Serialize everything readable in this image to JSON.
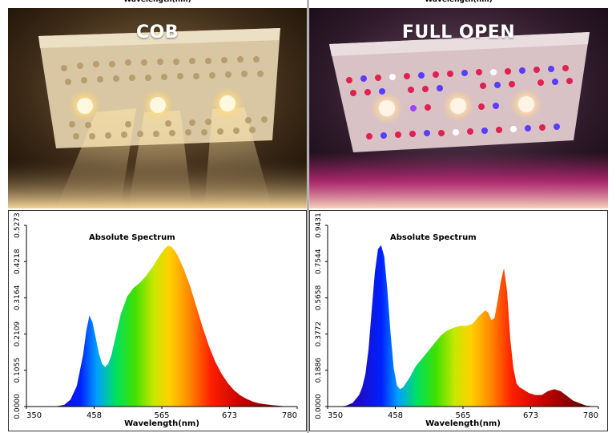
{
  "panels": [
    {
      "photo_title": "COB",
      "top_label": "Wavelength(nm)"
    },
    {
      "photo_title": "FULL OPEN",
      "top_label": "Wavelength(nm)"
    }
  ],
  "chart_data": [
    {
      "type": "area",
      "title": "Absolute Spectrum",
      "xlabel": "Wavelength(nm)",
      "ylabel": "",
      "xlim": [
        350,
        780
      ],
      "ylim": [
        0,
        0.5273
      ],
      "x_ticks": [
        "350",
        "458",
        "565",
        "673",
        "780"
      ],
      "y_ticks": [
        "0.0000",
        "0.1055",
        "0.2109",
        "0.3164",
        "0.4218",
        "0.5273"
      ],
      "x": [
        395,
        410,
        420,
        430,
        440,
        445,
        450,
        455,
        460,
        465,
        470,
        475,
        480,
        485,
        490,
        500,
        510,
        520,
        530,
        540,
        550,
        560,
        570,
        575,
        580,
        585,
        590,
        600,
        610,
        620,
        630,
        640,
        650,
        660,
        670,
        680,
        690,
        700,
        710,
        720,
        740,
        760,
        775
      ],
      "y": [
        0.0,
        0.005,
        0.02,
        0.06,
        0.15,
        0.22,
        0.265,
        0.245,
        0.2,
        0.155,
        0.125,
        0.115,
        0.125,
        0.15,
        0.19,
        0.27,
        0.32,
        0.345,
        0.36,
        0.38,
        0.405,
        0.435,
        0.46,
        0.468,
        0.465,
        0.455,
        0.44,
        0.4,
        0.35,
        0.29,
        0.23,
        0.175,
        0.13,
        0.095,
        0.068,
        0.047,
        0.032,
        0.022,
        0.014,
        0.009,
        0.004,
        0.001,
        0.0
      ]
    },
    {
      "type": "area",
      "title": "Absolute Spectrum",
      "xlabel": "Wavelength(nm)",
      "ylabel": "",
      "xlim": [
        350,
        780
      ],
      "ylim": [
        0,
        0.9431
      ],
      "x_ticks": [
        "350",
        "458",
        "565",
        "673",
        "780"
      ],
      "y_ticks": [
        "0.0000",
        "0.1886",
        "0.3772",
        "0.5658",
        "0.7544",
        "0.9431"
      ],
      "x": [
        370,
        380,
        390,
        400,
        405,
        410,
        415,
        420,
        425,
        430,
        435,
        440,
        445,
        450,
        455,
        460,
        465,
        470,
        480,
        490,
        500,
        510,
        520,
        530,
        540,
        550,
        560,
        570,
        580,
        590,
        600,
        605,
        610,
        615,
        620,
        625,
        630,
        635,
        640,
        645,
        650,
        655,
        660,
        670,
        680,
        690,
        700,
        710,
        720,
        740,
        760,
        775
      ],
      "y": [
        0.0,
        0.005,
        0.02,
        0.06,
        0.1,
        0.17,
        0.3,
        0.5,
        0.7,
        0.82,
        0.84,
        0.78,
        0.6,
        0.38,
        0.2,
        0.11,
        0.09,
        0.1,
        0.15,
        0.21,
        0.25,
        0.29,
        0.33,
        0.37,
        0.395,
        0.41,
        0.42,
        0.42,
        0.43,
        0.47,
        0.5,
        0.49,
        0.45,
        0.46,
        0.55,
        0.65,
        0.72,
        0.6,
        0.35,
        0.2,
        0.12,
        0.1,
        0.09,
        0.07,
        0.06,
        0.06,
        0.08,
        0.09,
        0.08,
        0.03,
        0.005,
        0.0
      ]
    }
  ]
}
